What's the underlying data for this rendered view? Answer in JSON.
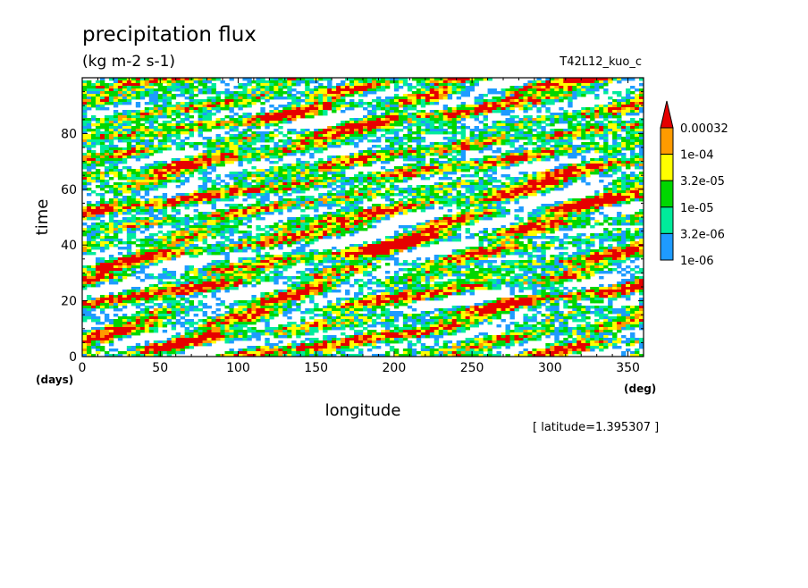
{
  "header": {
    "title": "precipitation flux",
    "units": "(kg m-2 s-1)",
    "run": "T42L12_kuo_c"
  },
  "note": "[ latitude=1.395307 ]",
  "chart_data": {
    "type": "heatmap",
    "title": "precipitation flux",
    "subtitle": "(kg m-2 s-1)",
    "xlabel": "longitude",
    "ylabel": "time",
    "xunit": "(deg)",
    "yunit": "(days)",
    "xlim": [
      0,
      360
    ],
    "ylim": [
      0,
      100
    ],
    "xticks": [
      0,
      50,
      100,
      150,
      200,
      250,
      300,
      350
    ],
    "yticks": [
      0,
      20,
      40,
      60,
      80
    ],
    "xtick_labels": [
      "0",
      "50",
      "100",
      "150",
      "200",
      "250",
      "300",
      "350"
    ],
    "ytick_labels": [
      "0",
      "20",
      "40",
      "60",
      "80"
    ],
    "levels": [
      1e-06,
      3.2e-06,
      1e-05,
      3.2e-05,
      0.0001,
      0.00032
    ],
    "level_labels": [
      "1e-06",
      "3.2e-06",
      "1e-05",
      "3.2e-05",
      "1e-04",
      "0.00032"
    ],
    "colors": [
      "#ffffff",
      "#1e9bff",
      "#00eb9b",
      "#00d700",
      "#ffff00",
      "#ff9b00",
      "#e60000"
    ],
    "colorbar": "right",
    "grid": false
  }
}
